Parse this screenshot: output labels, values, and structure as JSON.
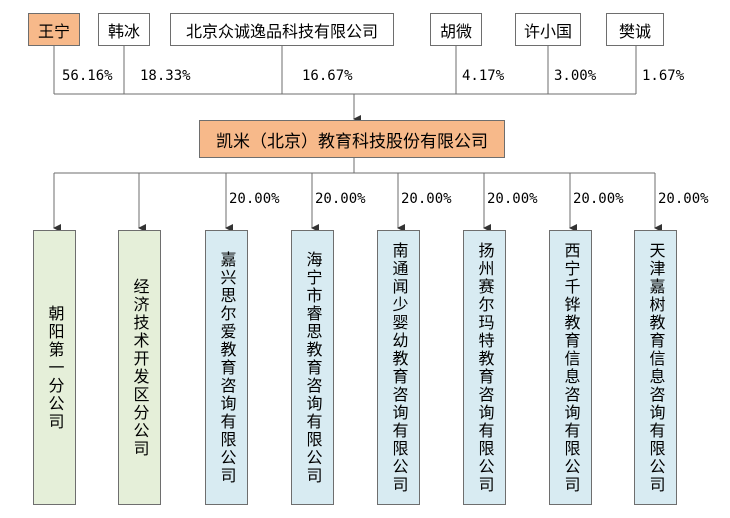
{
  "shareholders": [
    {
      "name": "王宁",
      "pct": "56.16%",
      "highlight": true
    },
    {
      "name": "韩冰",
      "pct": "18.33%"
    },
    {
      "name": "北京众诚逸品科技有限公司",
      "pct": "16.67%"
    },
    {
      "name": "胡微",
      "pct": "4.17%"
    },
    {
      "name": "许小国",
      "pct": "3.00%"
    },
    {
      "name": "樊诚",
      "pct": "1.67%"
    }
  ],
  "company": {
    "name": "凯米（北京）教育科技股份有限公司"
  },
  "subsidiaries": [
    {
      "name": "朝阳第一分公司",
      "pct": "",
      "kind": "branch"
    },
    {
      "name": "经济技术开发区分公司",
      "pct": "",
      "kind": "branch"
    },
    {
      "name": "嘉兴思尔爱教育咨询有限公司",
      "pct": "20.00%",
      "kind": "invest"
    },
    {
      "name": "海宁市睿思教育咨询有限公司",
      "pct": "20.00%",
      "kind": "invest"
    },
    {
      "name": "南通闻少婴幼教育咨询有限公司",
      "pct": "20.00%",
      "kind": "invest"
    },
    {
      "name": "扬州赛尔玛特教育咨询有限公司",
      "pct": "20.00%",
      "kind": "invest"
    },
    {
      "name": "西宁千铧教育信息咨询有限公司",
      "pct": "20.00%",
      "kind": "invest"
    },
    {
      "name": "天津嘉树教育信息咨询有限公司",
      "pct": "20.00%",
      "kind": "invest"
    }
  ],
  "colors": {
    "highlight": "#f7b98a",
    "branch": "#e5efd9",
    "invest": "#d8ebf2",
    "line": "#6e6e6e"
  }
}
